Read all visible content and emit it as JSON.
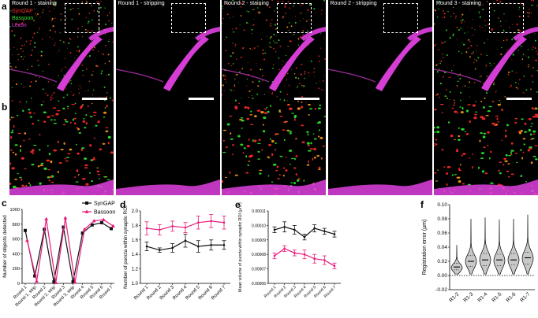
{
  "panel_letters": {
    "a": "a",
    "b": "b",
    "c": "c",
    "d": "d",
    "e": "e",
    "f": "f"
  },
  "micrographs": {
    "titles": [
      "Round 1 - staining",
      "Round 1 - stripping",
      "Round 2 - staining",
      "Round 2 - stripping",
      "Round 3 - staining"
    ],
    "channel_legend": [
      {
        "label": "SynGAP",
        "color": "#ff2a2a"
      },
      {
        "label": "Bassoon",
        "color": "#2ee82e"
      },
      {
        "label": "Lectin",
        "color": "#e040e0"
      }
    ],
    "tile_staining": [
      true,
      false,
      true,
      false,
      true
    ]
  },
  "colors": {
    "black_series": "#111111",
    "pink_series": "#e8197a",
    "violin_fill": "#c8c8c8"
  },
  "chart_data": [
    {
      "panel": "c",
      "type": "line",
      "ylabel": "Number of objects detected",
      "categories": [
        "Round 1",
        "Round 1, strip",
        "Round 2",
        "Round 2, strip",
        "Round 3",
        "Round 3, strip",
        "Round 4",
        "Round 5",
        "Round 6",
        "Round 7"
      ],
      "ylim": [
        0,
        1000
      ],
      "yticks": [
        "0",
        "200",
        "400",
        "600",
        "800",
        "1000"
      ],
      "series": [
        {
          "name": "SynGAP",
          "marker": "square",
          "color": "#111111",
          "x": [
            0,
            1,
            2,
            3,
            4,
            5,
            6,
            7,
            8,
            9
          ],
          "values": [
            715,
            100,
            730,
            20,
            760,
            20,
            680,
            790,
            820,
            740
          ]
        },
        {
          "name": "Bassoon",
          "marker": "triangle",
          "color": "#e8197a",
          "x": [
            0.2,
            1.2,
            2.2,
            3.2,
            4.2,
            5.2,
            6.2,
            7.2,
            8.2,
            9.2
          ],
          "values": [
            580,
            30,
            870,
            10,
            885,
            15,
            730,
            845,
            860,
            775
          ]
        }
      ],
      "legend_position": "top-right"
    },
    {
      "panel": "d",
      "type": "line",
      "ylabel": "Number of puncta within synaptic ROI",
      "categories": [
        "Round 1",
        "Round 2",
        "Round 3",
        "Round 4",
        "Round 5",
        "Round 6",
        "Round 7"
      ],
      "ylim": [
        1.0,
        2.0
      ],
      "yticks": [
        "1.0",
        "1.2",
        "1.4",
        "1.6",
        "1.8",
        "2.0"
      ],
      "series": [
        {
          "color": "#e8197a",
          "values": [
            1.76,
            1.74,
            1.79,
            1.77,
            1.84,
            1.86,
            1.84
          ],
          "errors": [
            0.09,
            0.07,
            0.07,
            0.07,
            0.09,
            0.09,
            0.09
          ]
        },
        {
          "color": "#111111",
          "values": [
            1.51,
            1.46,
            1.49,
            1.59,
            1.51,
            1.53,
            1.53
          ],
          "errors": [
            0.06,
            0.03,
            0.06,
            0.09,
            0.08,
            0.07,
            0.06
          ]
        }
      ]
    },
    {
      "panel": "e",
      "type": "line",
      "ylabel": "Mean volume of puncta within synaptic ROI (µm³)",
      "categories": [
        "Round 1",
        "Round 2",
        "Round 3",
        "Round 4",
        "Round 5",
        "Round 6",
        "Round 7"
      ],
      "ylim": [
        6e-05,
        0.00011
      ],
      "yticks": [
        "0.00006",
        "0.00007",
        "0.00008",
        "0.00009",
        "0.00010",
        "0.00011"
      ],
      "series": [
        {
          "color": "#111111",
          "values": [
            9.7e-05,
            9.9e-05,
            9.7e-05,
            9.2e-05,
            9.8e-05,
            9.6e-05,
            9.4e-05
          ],
          "errors": [
            2e-06,
            3.5e-06,
            3e-06,
            2e-06,
            2.5e-06,
            2e-06,
            2e-06
          ]
        },
        {
          "color": "#e8197a",
          "values": [
            7.9e-05,
            8.4e-05,
            8.1e-05,
            8e-05,
            7.7e-05,
            7.6e-05,
            7.2e-05
          ],
          "errors": [
            2e-06,
            2e-06,
            2e-06,
            3e-06,
            3e-06,
            3e-06,
            2e-06
          ]
        }
      ]
    },
    {
      "panel": "f",
      "type": "violin",
      "ylabel": "Registration error (µm)",
      "categories": [
        "R1-2",
        "R1-3",
        "R1-4",
        "R1-5",
        "R1-6",
        "R1-7"
      ],
      "ylim": [
        -0.02,
        0.1
      ],
      "yticks": [
        "-0.02",
        "0.00",
        "0.02",
        "0.04",
        "0.06",
        "0.08",
        "0.10"
      ],
      "reference_line": 0,
      "series": [
        {
          "median": 0.012,
          "q1": 0.008,
          "q3": 0.017,
          "min": 0.002,
          "max": 0.043,
          "peak": 0.011
        },
        {
          "median": 0.02,
          "q1": 0.013,
          "q3": 0.028,
          "min": 0.002,
          "max": 0.08,
          "peak": 0.02
        },
        {
          "median": 0.022,
          "q1": 0.014,
          "q3": 0.031,
          "min": 0.002,
          "max": 0.082,
          "peak": 0.022
        },
        {
          "median": 0.022,
          "q1": 0.014,
          "q3": 0.03,
          "min": 0.002,
          "max": 0.079,
          "peak": 0.021
        },
        {
          "median": 0.022,
          "q1": 0.015,
          "q3": 0.031,
          "min": 0.002,
          "max": 0.08,
          "peak": 0.022
        },
        {
          "median": 0.025,
          "q1": 0.016,
          "q3": 0.033,
          "min": 0.002,
          "max": 0.086,
          "peak": 0.024
        }
      ]
    }
  ]
}
